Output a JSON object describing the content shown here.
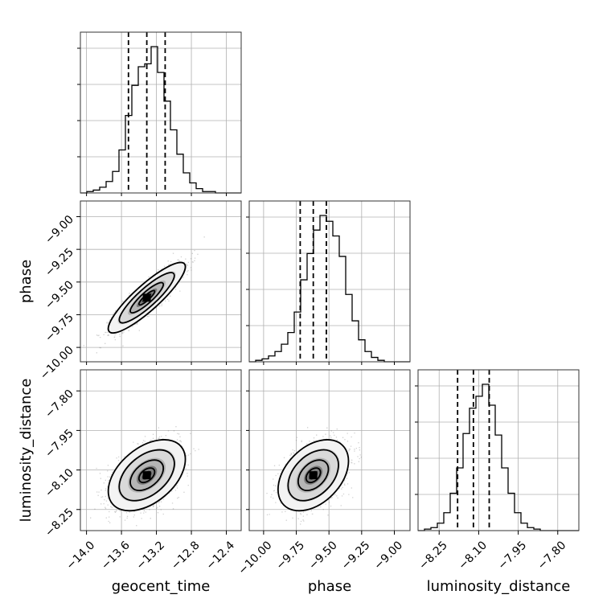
{
  "chart_data": {
    "type": "corner",
    "parameters": [
      "geocent_time",
      "phase",
      "luminosity_distance"
    ],
    "axis_labels": {
      "x": [
        "geocent_time",
        "phase",
        "luminosity_distance"
      ],
      "y": [
        "phase",
        "luminosity_distance"
      ]
    },
    "grid": true,
    "ranges": {
      "geocent_time": [
        -14.07,
        -12.23
      ],
      "phase": [
        -10.11,
        -8.88
      ],
      "luminosity_distance": [
        -8.33,
        -7.72
      ]
    },
    "ticks": {
      "geocent_time": [
        "-14.0",
        "-13.6",
        "-13.2",
        "-12.8",
        "-12.4"
      ],
      "phase": [
        "-10.00",
        "-9.75",
        "-9.50",
        "-9.25",
        "-9.00"
      ],
      "luminosity_distance": [
        "-8.25",
        "-8.10",
        "-7.95",
        "-7.80"
      ]
    },
    "quantiles": {
      "geocent_time": [
        -13.52,
        -13.31,
        -13.1
      ],
      "phase": [
        -9.72,
        -9.62,
        -9.52
      ],
      "luminosity_distance": [
        -8.18,
        -8.12,
        -8.06
      ]
    },
    "histograms": {
      "geocent_time": {
        "range": [
          -14.07,
          -12.23
        ],
        "counts": [
          0,
          1,
          2,
          4,
          8,
          15,
          30,
          54,
          75,
          88,
          90,
          102,
          84,
          64,
          44,
          27,
          14,
          7,
          3,
          1,
          1,
          0,
          0,
          0,
          0
        ]
      },
      "phase": {
        "range": [
          -10.11,
          -8.88
        ],
        "counts": [
          0,
          1,
          2,
          4,
          7,
          12,
          20,
          34,
          56,
          74,
          90,
          100,
          96,
          86,
          72,
          46,
          28,
          15,
          7,
          3,
          1,
          0,
          0,
          0,
          0
        ]
      },
      "luminosity_distance": {
        "range": [
          -8.33,
          -7.72
        ],
        "counts": [
          0,
          1,
          2,
          5,
          12,
          25,
          42,
          65,
          82,
          90,
          98,
          84,
          64,
          42,
          25,
          12,
          5,
          2,
          1,
          0,
          0,
          0,
          0,
          0,
          0
        ]
      }
    },
    "pairs": [
      {
        "x": "geocent_time",
        "y": "phase",
        "center": [
          -13.31,
          -9.62
        ],
        "sd": [
          0.18,
          0.11
        ],
        "corr": 0.88
      },
      {
        "x": "geocent_time",
        "y": "luminosity_distance",
        "center": [
          -13.31,
          -8.12
        ],
        "sd": [
          0.18,
          0.055
        ],
        "corr": 0.45
      },
      {
        "x": "phase",
        "y": "luminosity_distance",
        "center": [
          -9.62,
          -8.12
        ],
        "sd": [
          0.11,
          0.055
        ],
        "corr": 0.4
      }
    ]
  }
}
